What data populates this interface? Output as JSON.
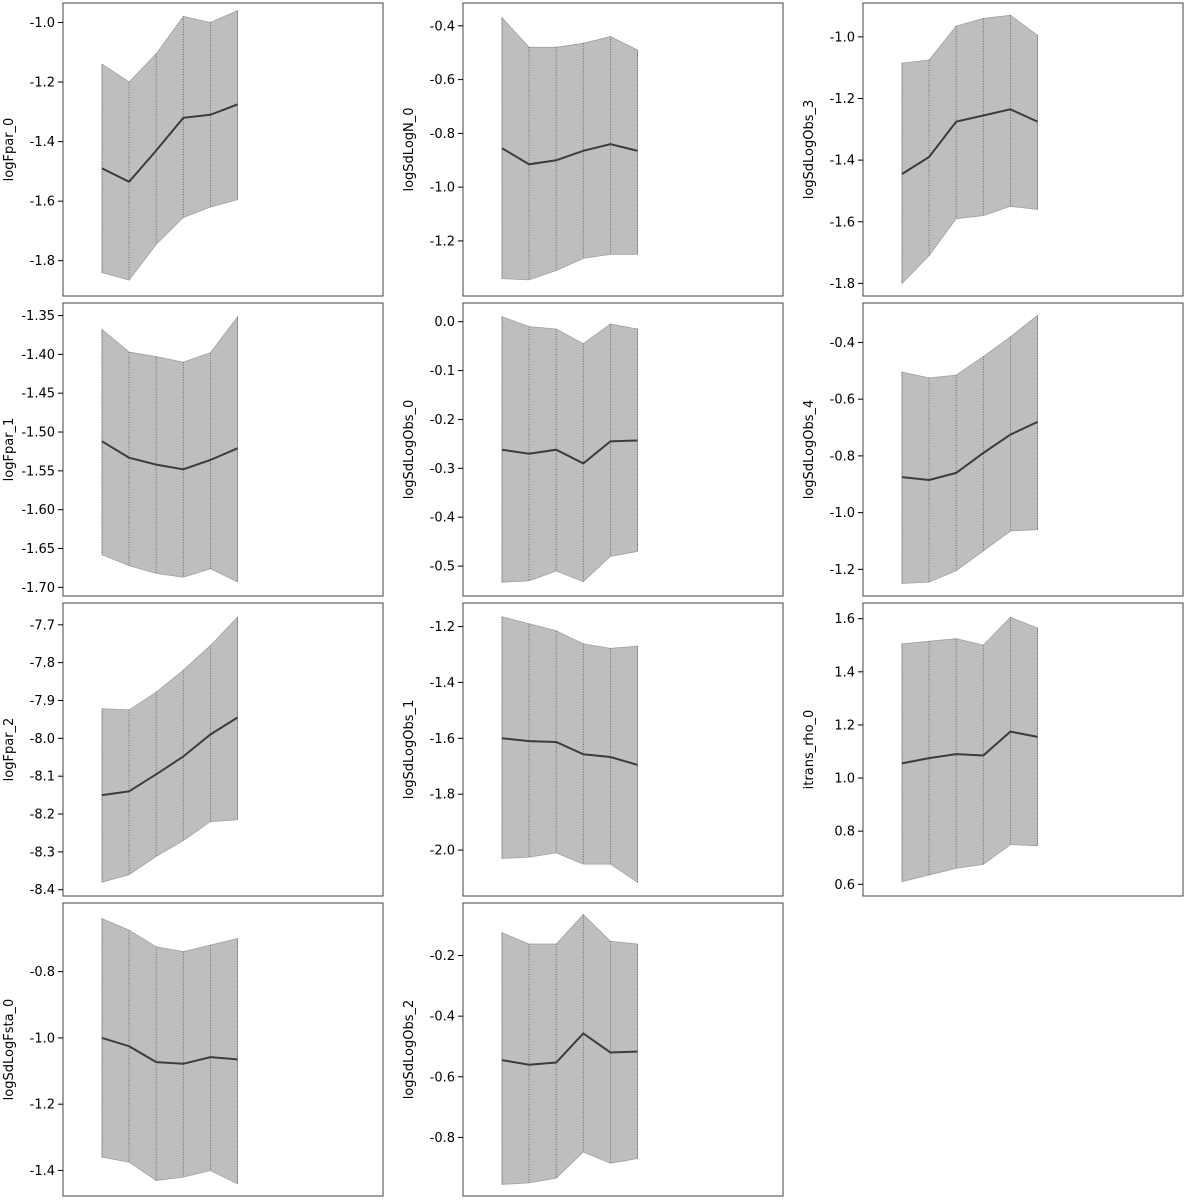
{
  "colors": {
    "band": "#bebebe",
    "band_edge": "#a0a0a0",
    "line": "#3c3c3c",
    "frame": "#404040",
    "vline": "#555555"
  },
  "chart_data": [
    {
      "type": "area",
      "ylabel": "logFpar_0",
      "x": [
        1,
        2,
        3,
        4,
        5,
        6
      ],
      "mean": [
        -1.49,
        -1.535,
        -1.43,
        -1.32,
        -1.31,
        -1.275
      ],
      "lower": [
        -1.84,
        -1.865,
        -1.745,
        -1.655,
        -1.62,
        -1.595
      ],
      "upper": [
        -1.14,
        -1.2,
        -1.105,
        -0.98,
        -1.0,
        -0.96
      ],
      "ylim": [
        -1.905,
        -0.948
      ],
      "yticks": [
        "-1.8",
        "-1.6",
        "-1.4",
        "-1.2",
        "-1.0"
      ],
      "ytick_values": [
        -1.8,
        -1.6,
        -1.4,
        -1.2,
        -1.0
      ]
    },
    {
      "type": "area",
      "ylabel": "logSdLogN_0",
      "x": [
        1,
        2,
        3,
        4,
        5,
        6
      ],
      "mean": [
        -0.855,
        -0.915,
        -0.9,
        -0.865,
        -0.84,
        -0.865
      ],
      "lower": [
        -1.34,
        -1.345,
        -1.31,
        -1.265,
        -1.25,
        -1.25
      ],
      "upper": [
        -0.37,
        -0.48,
        -0.48,
        -0.465,
        -0.44,
        -0.49
      ],
      "ylim": [
        -1.39,
        -0.33
      ],
      "yticks": [
        "-1.2",
        "-1.0",
        "-0.8",
        "-0.6",
        "-0.4"
      ],
      "ytick_values": [
        -1.2,
        -1.0,
        -0.8,
        -0.6,
        -0.4
      ]
    },
    {
      "type": "area",
      "ylabel": "logSdLogObs_3",
      "x": [
        1,
        2,
        3,
        4,
        5,
        6
      ],
      "mean": [
        -1.445,
        -1.39,
        -1.275,
        -1.255,
        -1.235,
        -1.275
      ],
      "lower": [
        -1.8,
        -1.71,
        -1.59,
        -1.58,
        -1.55,
        -1.56
      ],
      "upper": [
        -1.085,
        -1.075,
        -0.965,
        -0.94,
        -0.93,
        -0.995
      ],
      "ylim": [
        -1.828,
        -0.903
      ],
      "yticks": [
        "-1.8",
        "-1.6",
        "-1.4",
        "-1.2",
        "-1.0"
      ],
      "ytick_values": [
        -1.8,
        -1.6,
        -1.4,
        -1.2,
        -1.0
      ]
    },
    {
      "type": "area",
      "ylabel": "logFpar_1",
      "x": [
        1,
        2,
        3,
        4,
        5,
        6
      ],
      "mean": [
        -1.512,
        -1.533,
        -1.542,
        -1.548,
        -1.536,
        -1.521
      ],
      "lower": [
        -1.658,
        -1.672,
        -1.682,
        -1.687,
        -1.676,
        -1.693
      ],
      "upper": [
        -1.368,
        -1.397,
        -1.403,
        -1.41,
        -1.398,
        -1.352
      ],
      "ylim": [
        -1.706,
        -1.339
      ],
      "yticks": [
        "-1.70",
        "-1.65",
        "-1.60",
        "-1.55",
        "-1.50",
        "-1.45",
        "-1.40",
        "-1.35"
      ],
      "ytick_values": [
        -1.7,
        -1.65,
        -1.6,
        -1.55,
        -1.5,
        -1.45,
        -1.4,
        -1.35
      ]
    },
    {
      "type": "area",
      "ylabel": "logSdLogObs_0",
      "x": [
        1,
        2,
        3,
        4,
        5,
        6
      ],
      "mean": [
        -0.262,
        -0.27,
        -0.262,
        -0.29,
        -0.245,
        -0.243
      ],
      "lower": [
        -0.533,
        -0.53,
        -0.51,
        -0.532,
        -0.48,
        -0.47
      ],
      "upper": [
        0.01,
        -0.01,
        -0.015,
        -0.045,
        -0.005,
        -0.015
      ],
      "ylim": [
        -0.553,
        0.03
      ],
      "yticks": [
        "-0.5",
        "-0.4",
        "-0.3",
        "-0.2",
        "-0.1",
        "0.0"
      ],
      "ytick_values": [
        -0.5,
        -0.4,
        -0.3,
        -0.2,
        -0.1,
        0.0
      ]
    },
    {
      "type": "area",
      "ylabel": "logSdLogObs_4",
      "x": [
        1,
        2,
        3,
        4,
        5,
        6
      ],
      "mean": [
        -0.875,
        -0.885,
        -0.86,
        -0.79,
        -0.725,
        -0.68
      ],
      "lower": [
        -1.25,
        -1.245,
        -1.205,
        -1.135,
        -1.065,
        -1.06
      ],
      "upper": [
        -0.505,
        -0.525,
        -0.515,
        -0.45,
        -0.38,
        -0.305
      ],
      "ylim": [
        -1.28,
        -0.275
      ],
      "yticks": [
        "-1.2",
        "-1.0",
        "-0.8",
        "-0.6",
        "-0.4"
      ],
      "ytick_values": [
        -1.2,
        -1.0,
        -0.8,
        -0.6,
        -0.4
      ]
    },
    {
      "type": "area",
      "ylabel": "logFpar_2",
      "x": [
        1,
        2,
        3,
        4,
        5,
        6
      ],
      "mean": [
        -8.15,
        -8.14,
        -8.095,
        -8.048,
        -7.99,
        -7.945
      ],
      "lower": [
        -8.38,
        -8.36,
        -8.312,
        -8.27,
        -8.22,
        -8.215
      ],
      "upper": [
        -7.922,
        -7.925,
        -7.878,
        -7.82,
        -7.755,
        -7.68
      ],
      "ylim": [
        -8.406,
        -7.653
      ],
      "yticks": [
        "-8.4",
        "-8.3",
        "-8.2",
        "-8.1",
        "-8.0",
        "-7.9",
        "-7.8",
        "-7.7"
      ],
      "ytick_values": [
        -8.4,
        -8.3,
        -8.2,
        -8.1,
        -8.0,
        -7.9,
        -7.8,
        -7.7
      ]
    },
    {
      "type": "area",
      "ylabel": "logSdLogObs_1",
      "x": [
        1,
        2,
        3,
        4,
        5,
        6
      ],
      "mean": [
        -1.6,
        -1.61,
        -1.613,
        -1.657,
        -1.667,
        -1.695
      ],
      "lower": [
        -2.03,
        -2.025,
        -2.01,
        -2.05,
        -2.05,
        -2.115
      ],
      "upper": [
        -1.165,
        -1.19,
        -1.215,
        -1.262,
        -1.278,
        -1.27
      ],
      "ylim": [
        -2.15,
        -1.13
      ],
      "yticks": [
        "-2.0",
        "-1.8",
        "-1.6",
        "-1.4",
        "-1.2"
      ],
      "ytick_values": [
        -2.0,
        -1.8,
        -1.6,
        -1.4,
        -1.2
      ]
    },
    {
      "type": "area",
      "ylabel": "itrans_rho_0",
      "x": [
        1,
        2,
        3,
        4,
        5,
        6
      ],
      "mean": [
        1.055,
        1.075,
        1.09,
        1.085,
        1.175,
        1.155
      ],
      "lower": [
        0.61,
        0.635,
        0.66,
        0.675,
        0.75,
        0.745
      ],
      "upper": [
        1.505,
        1.515,
        1.525,
        1.5,
        1.605,
        1.565
      ],
      "ylim": [
        0.571,
        1.644
      ],
      "yticks": [
        "0.6",
        "0.8",
        "1.0",
        "1.2",
        "1.4",
        "1.6"
      ],
      "ytick_values": [
        0.6,
        0.8,
        1.0,
        1.2,
        1.4,
        1.6
      ]
    },
    {
      "type": "area",
      "ylabel": "logSdLogFsta_0",
      "x": [
        1,
        2,
        3,
        4,
        5,
        6
      ],
      "mean": [
        -1.0,
        -1.025,
        -1.073,
        -1.078,
        -1.058,
        -1.065
      ],
      "lower": [
        -1.36,
        -1.375,
        -1.43,
        -1.42,
        -1.4,
        -1.44
      ],
      "upper": [
        -0.64,
        -0.675,
        -0.725,
        -0.74,
        -0.72,
        -0.7
      ],
      "ylim": [
        -1.465,
        -0.605
      ],
      "yticks": [
        "-1.4",
        "-1.2",
        "-1.0",
        "-0.8"
      ],
      "ytick_values": [
        -1.4,
        -1.2,
        -1.0,
        -0.8
      ]
    },
    {
      "type": "area",
      "ylabel": "logSdLogObs_2",
      "x": [
        1,
        2,
        3,
        4,
        5,
        6
      ],
      "mean": [
        -0.545,
        -0.56,
        -0.553,
        -0.457,
        -0.52,
        -0.517
      ],
      "lower": [
        -0.955,
        -0.95,
        -0.934,
        -0.848,
        -0.885,
        -0.87
      ],
      "upper": [
        -0.125,
        -0.162,
        -0.162,
        -0.065,
        -0.153,
        -0.162
      ],
      "ylim": [
        -0.98,
        -0.04
      ],
      "yticks": [
        "-0.8",
        "-0.6",
        "-0.4",
        "-0.2"
      ],
      "ytick_values": [
        -0.8,
        -0.6,
        -0.4,
        -0.2
      ]
    }
  ]
}
